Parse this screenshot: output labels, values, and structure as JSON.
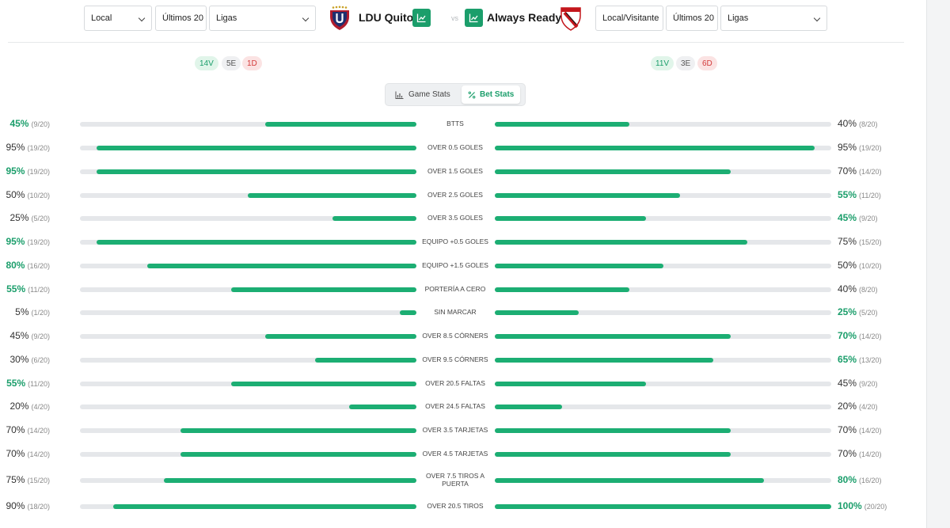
{
  "colors": {
    "accent": "#1b9e6b",
    "bar": "#1cae73",
    "track": "#e5e7ea",
    "loss": "#d33b3b"
  },
  "home": {
    "name": "LDU Quito",
    "filters": {
      "venue": "Local",
      "range": "Últimos 20",
      "leagues": "Ligas"
    },
    "form": {
      "wins": "14V",
      "draws": "5E",
      "losses": "1D"
    }
  },
  "away": {
    "name": "Always Ready",
    "filters": {
      "venue": "Local/Visitante",
      "range": "Últimos 20",
      "leagues": "Ligas"
    },
    "form": {
      "wins": "11V",
      "draws": "3E",
      "losses": "6D"
    }
  },
  "vs_label": "vs",
  "tabs": {
    "game": "Game Stats",
    "bet": "Bet Stats"
  },
  "stats": [
    {
      "label": "BTTS",
      "home": {
        "pct": 45,
        "text": "45%",
        "count": "(9/20)",
        "hi": true
      },
      "away": {
        "pct": 40,
        "text": "40%",
        "count": "(8/20)",
        "hi": false
      }
    },
    {
      "label": "OVER 0.5 GOLES",
      "home": {
        "pct": 95,
        "text": "95%",
        "count": "(19/20)",
        "hi": false
      },
      "away": {
        "pct": 95,
        "text": "95%",
        "count": "(19/20)",
        "hi": false
      }
    },
    {
      "label": "OVER 1.5 GOLES",
      "home": {
        "pct": 95,
        "text": "95%",
        "count": "(19/20)",
        "hi": true
      },
      "away": {
        "pct": 70,
        "text": "70%",
        "count": "(14/20)",
        "hi": false
      }
    },
    {
      "label": "OVER 2.5 GOLES",
      "home": {
        "pct": 50,
        "text": "50%",
        "count": "(10/20)",
        "hi": false
      },
      "away": {
        "pct": 55,
        "text": "55%",
        "count": "(11/20)",
        "hi": true
      }
    },
    {
      "label": "OVER 3.5 GOLES",
      "home": {
        "pct": 25,
        "text": "25%",
        "count": "(5/20)",
        "hi": false
      },
      "away": {
        "pct": 45,
        "text": "45%",
        "count": "(9/20)",
        "hi": true
      }
    },
    {
      "label": "EQUIPO +0.5 GOLES",
      "home": {
        "pct": 95,
        "text": "95%",
        "count": "(19/20)",
        "hi": true
      },
      "away": {
        "pct": 75,
        "text": "75%",
        "count": "(15/20)",
        "hi": false
      }
    },
    {
      "label": "EQUIPO +1.5 GOLES",
      "home": {
        "pct": 80,
        "text": "80%",
        "count": "(16/20)",
        "hi": true
      },
      "away": {
        "pct": 50,
        "text": "50%",
        "count": "(10/20)",
        "hi": false
      }
    },
    {
      "label": "PORTERÍA A CERO",
      "home": {
        "pct": 55,
        "text": "55%",
        "count": "(11/20)",
        "hi": true
      },
      "away": {
        "pct": 40,
        "text": "40%",
        "count": "(8/20)",
        "hi": false
      }
    },
    {
      "label": "SIN MARCAR",
      "home": {
        "pct": 5,
        "text": "5%",
        "count": "(1/20)",
        "hi": false
      },
      "away": {
        "pct": 25,
        "text": "25%",
        "count": "(5/20)",
        "hi": true
      }
    },
    {
      "label": "OVER 8.5 CÓRNERS",
      "home": {
        "pct": 45,
        "text": "45%",
        "count": "(9/20)",
        "hi": false
      },
      "away": {
        "pct": 70,
        "text": "70%",
        "count": "(14/20)",
        "hi": true
      }
    },
    {
      "label": "OVER 9.5 CÓRNERS",
      "home": {
        "pct": 30,
        "text": "30%",
        "count": "(6/20)",
        "hi": false
      },
      "away": {
        "pct": 65,
        "text": "65%",
        "count": "(13/20)",
        "hi": true
      }
    },
    {
      "label": "OVER 20.5 FALTAS",
      "home": {
        "pct": 55,
        "text": "55%",
        "count": "(11/20)",
        "hi": true
      },
      "away": {
        "pct": 45,
        "text": "45%",
        "count": "(9/20)",
        "hi": false
      }
    },
    {
      "label": "OVER 24.5 FALTAS",
      "home": {
        "pct": 20,
        "text": "20%",
        "count": "(4/20)",
        "hi": false
      },
      "away": {
        "pct": 20,
        "text": "20%",
        "count": "(4/20)",
        "hi": false
      }
    },
    {
      "label": "OVER 3.5 TARJETAS",
      "home": {
        "pct": 70,
        "text": "70%",
        "count": "(14/20)",
        "hi": false
      },
      "away": {
        "pct": 70,
        "text": "70%",
        "count": "(14/20)",
        "hi": false
      }
    },
    {
      "label": "OVER 4.5 TARJETAS",
      "home": {
        "pct": 70,
        "text": "70%",
        "count": "(14/20)",
        "hi": false
      },
      "away": {
        "pct": 70,
        "text": "70%",
        "count": "(14/20)",
        "hi": false
      }
    },
    {
      "label": "OVER 7.5 TIROS A PUERTA",
      "home": {
        "pct": 75,
        "text": "75%",
        "count": "(15/20)",
        "hi": false
      },
      "away": {
        "pct": 80,
        "text": "80%",
        "count": "(16/20)",
        "hi": true
      }
    },
    {
      "label": "OVER 20.5 TIROS",
      "home": {
        "pct": 90,
        "text": "90%",
        "count": "(18/20)",
        "hi": false
      },
      "away": {
        "pct": 100,
        "text": "100%",
        "count": "(20/20)",
        "hi": true
      }
    }
  ]
}
